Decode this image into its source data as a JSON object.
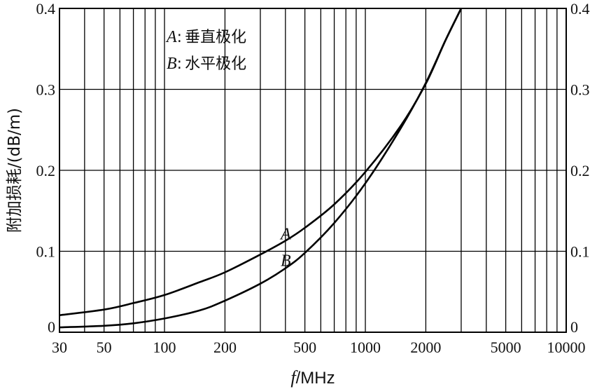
{
  "chart_data": {
    "type": "line",
    "x_scale": "log",
    "xlim": [
      30,
      10000
    ],
    "ylim": [
      0,
      0.4
    ],
    "grid": true,
    "xlabel_var": "f",
    "xlabel_unit": "MHz",
    "ylabel": "附加损耗/(dB/m)",
    "x_ticks": [
      30,
      50,
      100,
      200,
      500,
      1000,
      2000,
      5000,
      10000
    ],
    "x_tick_labels": [
      "30",
      "50",
      "100",
      "200",
      "500",
      "1000",
      "2000",
      "5000",
      "10000"
    ],
    "y_ticks": [
      0,
      0.1,
      0.2,
      0.3,
      0.4
    ],
    "y_tick_labels": [
      "0",
      "0.1",
      "0.2",
      "0.3",
      "0.4"
    ],
    "legend": [
      {
        "key": "A",
        "sep": ":",
        "text": "垂直极化"
      },
      {
        "key": "B",
        "sep": ":",
        "text": "水平极化"
      }
    ],
    "series": [
      {
        "name": "A",
        "x": [
          30,
          50,
          70,
          100,
          150,
          200,
          300,
          400,
          500,
          700,
          1000,
          1500,
          2000,
          2500,
          3000
        ],
        "y": [
          0.021,
          0.028,
          0.036,
          0.046,
          0.062,
          0.074,
          0.096,
          0.113,
          0.129,
          0.158,
          0.198,
          0.255,
          0.307,
          0.36,
          0.4
        ]
      },
      {
        "name": "B",
        "x": [
          30,
          50,
          70,
          100,
          150,
          200,
          300,
          400,
          500,
          700,
          1000,
          1500,
          2000,
          2500,
          3000
        ],
        "y": [
          0.006,
          0.008,
          0.011,
          0.017,
          0.027,
          0.039,
          0.06,
          0.079,
          0.098,
          0.135,
          0.184,
          0.252,
          0.308,
          0.36,
          0.4
        ]
      }
    ]
  }
}
